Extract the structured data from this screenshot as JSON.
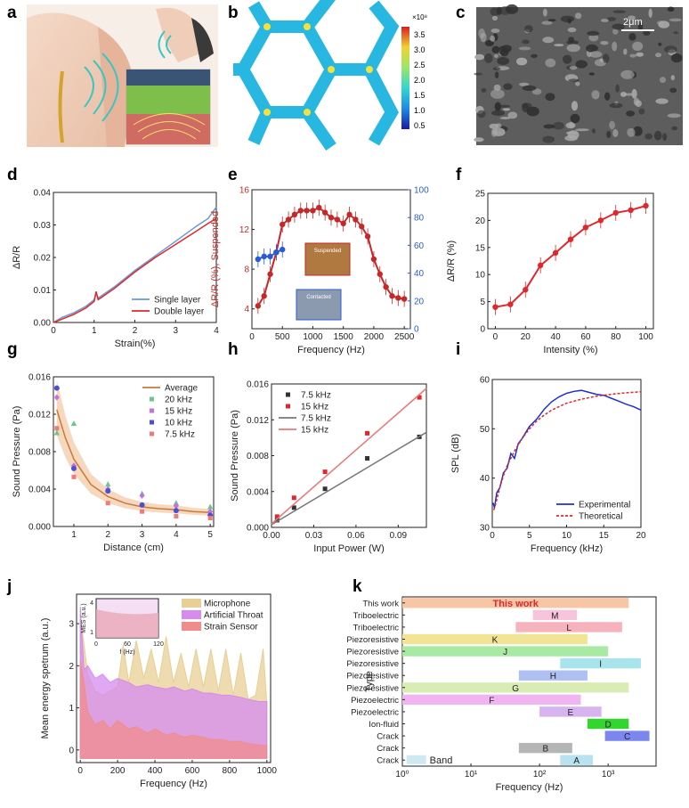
{
  "panels": {
    "a": "a",
    "b": "b",
    "c": "c",
    "d": "d",
    "e": "e",
    "f": "f",
    "g": "g",
    "h": "h",
    "i": "i",
    "j": "j",
    "k": "k"
  },
  "images": {
    "b_colorbar": {
      "multiplier": "×10⁸",
      "ticks": [
        "3.5",
        "3.0",
        "2.5",
        "2.0",
        "1.5",
        "1.0",
        "0.5"
      ]
    },
    "c_scale": "2μm"
  },
  "chart_data": [
    {
      "panel": "d",
      "type": "line",
      "xlabel": "Strain(%)",
      "ylabel": "ΔR/R",
      "xlim": [
        0,
        4
      ],
      "ylim": [
        0,
        0.04
      ],
      "xticks": [
        "0",
        "1",
        "2",
        "3",
        "4"
      ],
      "yticks": [
        "0.00",
        "0.01",
        "0.02",
        "0.03",
        "0.04"
      ],
      "legend_position": "bottom-right",
      "series": [
        {
          "name": "Single layer",
          "color": "#6a9ad4",
          "x": [
            0,
            0.2,
            0.5,
            0.8,
            1.0,
            1.05,
            1.1,
            1.5,
            2.0,
            2.5,
            3.0,
            3.5,
            3.8,
            4.0
          ],
          "y": [
            0,
            0.0015,
            0.003,
            0.005,
            0.007,
            0.009,
            0.0075,
            0.011,
            0.016,
            0.0205,
            0.025,
            0.0295,
            0.032,
            0.0355
          ]
        },
        {
          "name": "Double layer",
          "color": "#e0272b",
          "x": [
            0,
            0.2,
            0.5,
            0.8,
            1.0,
            1.05,
            1.1,
            1.5,
            2.0,
            2.5,
            3.0,
            3.5,
            3.8,
            4.0
          ],
          "y": [
            0,
            0.001,
            0.0025,
            0.0045,
            0.0065,
            0.0095,
            0.007,
            0.0105,
            0.0155,
            0.02,
            0.024,
            0.028,
            0.0305,
            0.032
          ]
        }
      ]
    },
    {
      "panel": "e",
      "type": "line",
      "xlabel": "Frequency (Hz)",
      "ylabel": "ΔR/R (%), Suspended",
      "xlim": [
        0,
        2600
      ],
      "ylim": [
        2,
        16
      ],
      "y2lim": [
        0,
        100
      ],
      "xticks": [
        "0",
        "500",
        "1000",
        "1500",
        "2000",
        "2500"
      ],
      "yticks": [
        "4",
        "8",
        "12",
        "16"
      ],
      "y2ticks": [
        "0",
        "20",
        "40",
        "60",
        "80",
        "100"
      ],
      "inset_labels": [
        "Suspended",
        "Contacted"
      ],
      "series": [
        {
          "name": "Suspended",
          "color": "#c62828",
          "axis": "left",
          "x": [
            100,
            200,
            300,
            400,
            500,
            600,
            700,
            800,
            900,
            1000,
            1100,
            1200,
            1300,
            1400,
            1500,
            1600,
            1700,
            1800,
            1900,
            2000,
            2100,
            2200,
            2300,
            2400,
            2500
          ],
          "y": [
            4.3,
            5.3,
            7.5,
            9.7,
            12.5,
            13.0,
            13.5,
            13.9,
            13.9,
            13.9,
            14.2,
            13.7,
            13.2,
            13.0,
            12.6,
            13.5,
            13.0,
            12.3,
            11.3,
            9.0,
            7.5,
            6.2,
            5.3,
            5.1,
            5.0
          ]
        },
        {
          "name": "Contacted",
          "color": "#2a5bd7",
          "axis": "right",
          "x": [
            100,
            200,
            300,
            400,
            500
          ],
          "y": [
            50,
            52,
            52,
            55,
            57
          ]
        }
      ]
    },
    {
      "panel": "f",
      "type": "line",
      "xlabel": "Intensity (%)",
      "ylabel": "ΔR/R (%)",
      "xlim": [
        -5,
        105
      ],
      "ylim": [
        0,
        25
      ],
      "xticks": [
        "0",
        "20",
        "40",
        "60",
        "80",
        "100"
      ],
      "yticks": [
        "0",
        "5",
        "10",
        "15",
        "20",
        "25"
      ],
      "series": [
        {
          "name": "",
          "color": "#e0272b",
          "x": [
            0,
            10,
            20,
            30,
            40,
            50,
            60,
            70,
            80,
            90,
            100
          ],
          "y": [
            4.0,
            4.5,
            7.2,
            11.7,
            14.0,
            16.5,
            18.7,
            20.0,
            21.4,
            21.9,
            22.7
          ]
        }
      ]
    },
    {
      "panel": "g",
      "type": "scatter",
      "xlabel": "Distance (cm)",
      "ylabel": "Sound Pressure (Pa)",
      "xlim": [
        0.4,
        5.1
      ],
      "ylim": [
        0,
        0.016
      ],
      "xticks": [
        "1",
        "2",
        "3",
        "4",
        "5"
      ],
      "yticks": [
        "0.000",
        "0.004",
        "0.008",
        "0.012",
        "0.016"
      ],
      "legend_position": "top-right",
      "series": [
        {
          "name": "Average",
          "color": "#c87a3a",
          "kind": "line",
          "x": [
            0.5,
            0.75,
            1.0,
            1.5,
            2.0,
            2.5,
            3.0,
            3.5,
            4.0,
            4.5,
            5.0
          ],
          "y": [
            0.0125,
            0.0095,
            0.0072,
            0.0045,
            0.0032,
            0.0025,
            0.0021,
            0.0019,
            0.0018,
            0.0016,
            0.0015
          ]
        },
        {
          "name": "20 kHz",
          "color": "#6cc58a",
          "kind": "triangle",
          "x": [
            0.5,
            1,
            2,
            3,
            4,
            5
          ],
          "y": [
            0.01,
            0.011,
            0.0045,
            0.0035,
            0.0025,
            0.0021
          ]
        },
        {
          "name": "15 kHz",
          "color": "#c56fe0",
          "kind": "diamond",
          "x": [
            0.5,
            1,
            2,
            3,
            4,
            5
          ],
          "y": [
            0.0138,
            0.0065,
            0.004,
            0.0033,
            0.0022,
            0.0016
          ]
        },
        {
          "name": "10 kHz",
          "color": "#4b4fd6",
          "kind": "circle",
          "x": [
            0.5,
            1,
            2,
            3,
            4,
            5
          ],
          "y": [
            0.0148,
            0.0062,
            0.0038,
            0.0023,
            0.0017,
            0.0012
          ]
        },
        {
          "name": "7.5 kHz",
          "color": "#ef7a7a",
          "kind": "square",
          "x": [
            0.5,
            1,
            2,
            3,
            4,
            5
          ],
          "y": [
            0.0105,
            0.0053,
            0.0025,
            0.0016,
            0.0011,
            0.0009
          ]
        }
      ]
    },
    {
      "panel": "h",
      "type": "scatter",
      "xlabel": "Input Power (W)",
      "ylabel": "Sound Pressure (Pa)",
      "xlim": [
        0,
        0.11
      ],
      "ylim": [
        0,
        0.016
      ],
      "xticks": [
        "0.00",
        "0.03",
        "0.06",
        "0.09"
      ],
      "yticks": [
        "0.000",
        "0.004",
        "0.008",
        "0.012",
        "0.016"
      ],
      "legend_position": "top-left",
      "series": [
        {
          "name": "7.5 kHz",
          "color": "#333333",
          "kind": "square",
          "x": [
            0.004,
            0.016,
            0.038,
            0.068,
            0.105
          ],
          "y": [
            0.0008,
            0.0022,
            0.0043,
            0.0077,
            0.0101
          ]
        },
        {
          "name": "15 kHz",
          "color": "#e0272b",
          "kind": "square",
          "x": [
            0.004,
            0.016,
            0.038,
            0.068,
            0.105
          ],
          "y": [
            0.0012,
            0.0033,
            0.0062,
            0.0105,
            0.0145
          ]
        },
        {
          "name": "7.5 kHz",
          "color": "#777777",
          "kind": "line",
          "x": [
            0,
            0.11
          ],
          "y": [
            0.0003,
            0.0106
          ]
        },
        {
          "name": "15 kHz",
          "color": "#e87878",
          "kind": "line",
          "x": [
            0,
            0.11
          ],
          "y": [
            0.0004,
            0.0155
          ]
        }
      ]
    },
    {
      "panel": "i",
      "type": "line",
      "xlabel": "Frequency (kHz)",
      "ylabel": "SPL (dB)",
      "xlim": [
        0,
        20
      ],
      "ylim": [
        30,
        60
      ],
      "xticks": [
        "0",
        "5",
        "10",
        "15",
        "20"
      ],
      "yticks": [
        "30",
        "40",
        "50",
        "60"
      ],
      "legend_position": "bottom-right",
      "series": [
        {
          "name": "Experimental",
          "color": "#1f2fcf",
          "x": [
            0.1,
            0.3,
            0.6,
            1.0,
            1.5,
            2.0,
            2.5,
            3.0,
            3.5,
            4.0,
            5.0,
            6.0,
            7.0,
            8.0,
            9.0,
            10.0,
            11.0,
            12.0,
            13.0,
            14.0,
            15.0,
            16.0,
            17.0,
            18.0,
            19.0,
            20.0
          ],
          "y": [
            35,
            34,
            37,
            38,
            41,
            42,
            45,
            44,
            47,
            48,
            50.5,
            52,
            54,
            55.5,
            56.5,
            57.2,
            57.6,
            57.8,
            57.4,
            57.0,
            56.8,
            56.2,
            55.6,
            55.0,
            54.5,
            53.8
          ]
        },
        {
          "name": "Theoretical",
          "color": "#e0272b",
          "dashed": true,
          "x": [
            0.2,
            0.5,
            1.0,
            1.5,
            2.0,
            3.0,
            4.0,
            5.0,
            6.0,
            7.0,
            8.0,
            10.0,
            12.0,
            14.0,
            16.0,
            18.0,
            20.0
          ],
          "y": [
            33.5,
            35,
            38,
            40.5,
            42.5,
            45.5,
            48,
            50,
            51.6,
            52.8,
            53.8,
            55.2,
            56.0,
            56.6,
            57.0,
            57.3,
            57.5
          ]
        }
      ]
    },
    {
      "panel": "j",
      "type": "area",
      "xlabel": "Frequency (Hz)",
      "ylabel": "Mean energy spetrum (a.u.)",
      "xlim": [
        -20,
        1020
      ],
      "ylim": [
        -0.3,
        3.7
      ],
      "xticks": [
        "0",
        "200",
        "400",
        "600",
        "800",
        "1000"
      ],
      "yticks": [
        "0",
        "1",
        "2",
        "3"
      ],
      "legend_position": "top-right",
      "inset": {
        "xlabel": "f (Hz)",
        "ylabel": "MES (a.u.)",
        "xticks": [
          "0",
          "60",
          "120"
        ],
        "yticks": [
          "1",
          "4"
        ]
      },
      "series": [
        {
          "name": "Microphone",
          "color": "#e8cf95",
          "x": [
            0,
            40,
            80,
            120,
            160,
            200,
            230,
            260,
            300,
            340,
            380,
            420,
            460,
            500,
            540,
            580,
            620,
            660,
            700,
            740,
            780,
            820,
            860,
            900,
            940,
            980,
            1000
          ],
          "y": [
            3.2,
            1.8,
            1.4,
            1.3,
            1.4,
            1.5,
            2.5,
            1.6,
            2.6,
            1.7,
            2.4,
            1.6,
            2.7,
            1.6,
            2.3,
            1.5,
            2.4,
            1.5,
            2.4,
            1.4,
            2.4,
            1.3,
            2.3,
            1.2,
            1.3,
            2.4,
            1.1
          ]
        },
        {
          "name": "Artificial Throat",
          "color": "#d68bef",
          "x": [
            0,
            20,
            40,
            80,
            120,
            160,
            200,
            260,
            300,
            360,
            400,
            460,
            500,
            560,
            600,
            660,
            700,
            760,
            800,
            860,
            900,
            960,
            1000
          ],
          "y": [
            3.4,
            1.9,
            2.0,
            1.7,
            1.8,
            1.6,
            1.7,
            1.6,
            1.5,
            1.55,
            1.5,
            1.45,
            1.5,
            1.4,
            1.45,
            1.35,
            1.35,
            1.3,
            1.3,
            1.25,
            1.2,
            1.15,
            1.15
          ]
        },
        {
          "name": "Strain Sensor",
          "color": "#f08c8c",
          "x": [
            0,
            20,
            40,
            80,
            120,
            160,
            200,
            260,
            300,
            360,
            400,
            460,
            500,
            560,
            600,
            660,
            700,
            760,
            800,
            860,
            900,
            960,
            1000
          ],
          "y": [
            2.1,
            1.6,
            0.9,
            0.6,
            0.7,
            0.5,
            0.7,
            0.5,
            0.55,
            0.4,
            0.5,
            0.35,
            0.4,
            0.3,
            0.35,
            0.3,
            0.25,
            0.25,
            0.2,
            0.2,
            0.15,
            0.12,
            0.1
          ]
        }
      ]
    },
    {
      "panel": "k",
      "type": "bar",
      "xlabel": "Frequency (Hz)",
      "ylabel": "Type",
      "xscale": "log",
      "xlim": [
        1,
        5000
      ],
      "xticks": [
        "10⁰",
        "10¹",
        "10²",
        "10³"
      ],
      "legend": "Band",
      "bars": [
        {
          "type": "This work",
          "label": "This work",
          "from": 1,
          "to": 2000,
          "color": "#f9c6a5",
          "highlight": true
        },
        {
          "type": "Triboelectric",
          "label": "M",
          "from": 80,
          "to": 350,
          "color": "#f6c5dc"
        },
        {
          "type": "Triboelectric",
          "label": "L",
          "from": 45,
          "to": 1600,
          "color": "#f6b3bd"
        },
        {
          "type": "Piezoresistive",
          "label": "K",
          "from": 1,
          "to": 500,
          "color": "#f1e595"
        },
        {
          "type": "Piezoresistive",
          "label": "J",
          "from": 1,
          "to": 1000,
          "color": "#a8e9a4"
        },
        {
          "type": "Piezoresistive",
          "label": "I",
          "from": 200,
          "to": 3000,
          "color": "#a7e4ec"
        },
        {
          "type": "Piezoresistive",
          "label": "H",
          "from": 50,
          "to": 500,
          "color": "#aebff1"
        },
        {
          "type": "Piezoresistive",
          "label": "G",
          "from": 1,
          "to": 2000,
          "color": "#d9ecb3"
        },
        {
          "type": "Piezoelectric",
          "label": "F",
          "from": 1,
          "to": 400,
          "color": "#f0b4f0"
        },
        {
          "type": "Piezoelectric",
          "label": "E",
          "from": 100,
          "to": 800,
          "color": "#d7b4ef"
        },
        {
          "type": "Ion-fluid",
          "label": "D",
          "from": 500,
          "to": 2000,
          "color": "#33d52f"
        },
        {
          "type": "Crack",
          "label": "C",
          "from": 900,
          "to": 4000,
          "color": "#7c86ef"
        },
        {
          "type": "Crack",
          "label": "B",
          "from": 50,
          "to": 300,
          "color": "#b5b5b5"
        },
        {
          "type": "Crack",
          "label": "A",
          "from": 200,
          "to": 600,
          "color": "#b8e2ef"
        }
      ]
    }
  ]
}
